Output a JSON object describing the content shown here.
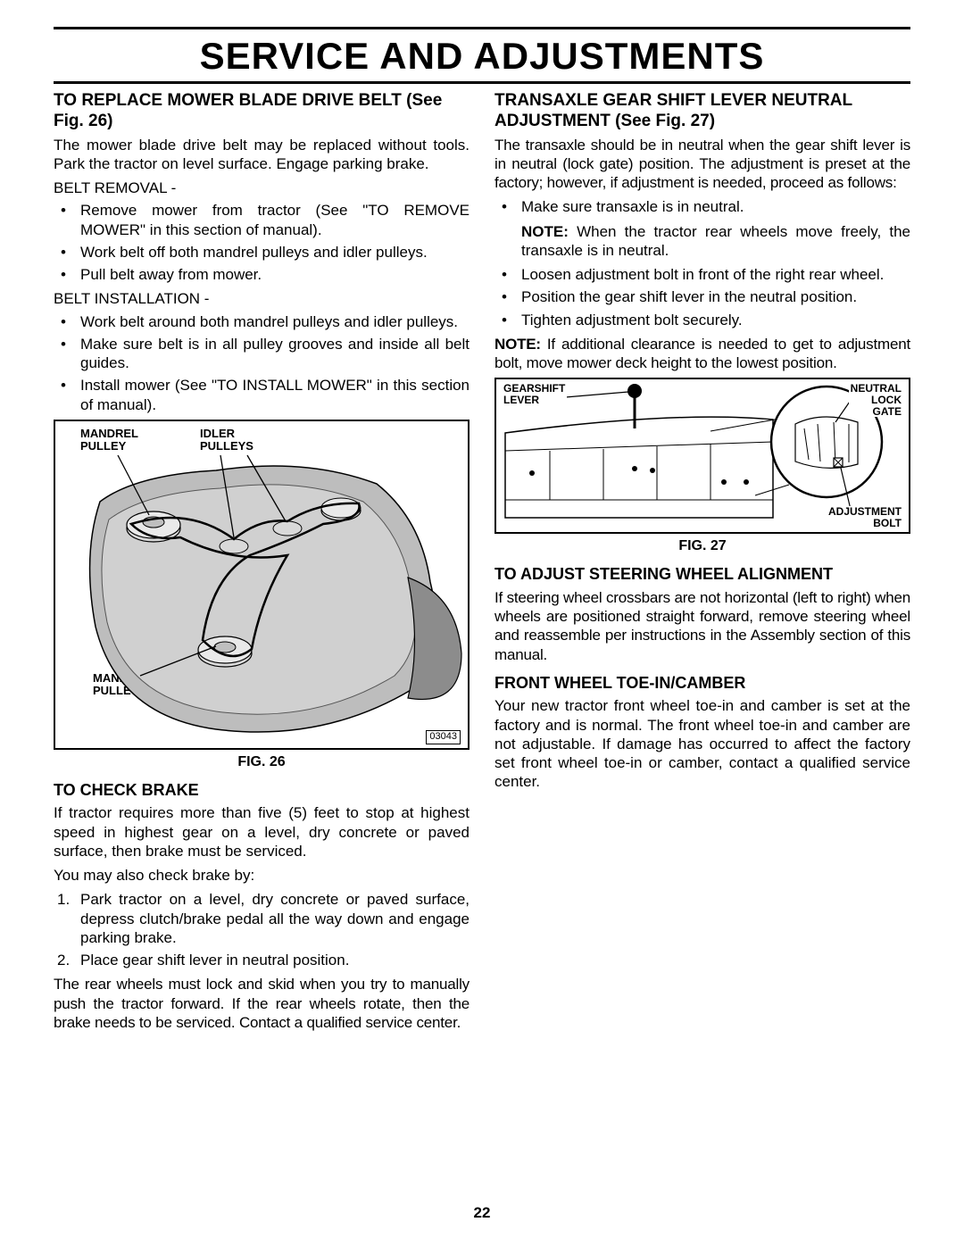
{
  "page_title": "SERVICE AND ADJUSTMENTS",
  "page_number": "22",
  "left": {
    "h1": "TO REPLACE MOWER BLADE DRIVE BELT (See Fig. 26)",
    "p1": "The mower blade drive belt may be replaced without tools. Park the tractor on level surface.  Engage parking brake.",
    "sub1": "BELT REMOVAL -",
    "b1": "Remove mower from tractor (See \"TO REMOVE MOWER\" in this section of manual).",
    "b2": "Work belt off both mandrel pulleys and idler pulleys.",
    "b3": "Pull belt away from mower.",
    "sub2": "BELT INSTALLATION -",
    "b4": "Work belt around both mandrel pulleys and idler pulleys.",
    "b5": "Make sure belt is in all pulley grooves and inside all belt guides.",
    "b6": "Install mower (See \"TO INSTALL MOWER\" in this section of manual).",
    "fig26": {
      "label_mandrel1": "MANDREL\nPULLEY",
      "label_idler": "IDLER\nPULLEYS",
      "label_mandrel2": "MANDREL\nPULLEY",
      "caption": "FIG. 26",
      "part_no": "03043"
    },
    "h2": "TO CHECK BRAKE",
    "p2": "If tractor requires more than five (5) feet to stop at highest speed in highest gear on a level, dry concrete or paved surface, then brake must be serviced.",
    "p3": "You may also check brake by:",
    "n1": "Park tractor on a level, dry concrete or paved surface, depress clutch/brake pedal all the way down and engage parking brake.",
    "n2": "Place gear shift lever in neutral position.",
    "p4": "The rear wheels must lock and skid when you try to manually push the tractor forward. If the rear wheels rotate, then the brake needs to be serviced. Contact a qualified service center."
  },
  "right": {
    "h1": "TRANSAXLE GEAR SHIFT LEVER NEUTRAL ADJUSTMENT (See Fig. 27)",
    "p1": "The transaxle should be in neutral when the gear shift lever is in neutral (lock gate) position. The adjustment is preset at the factory; however, if adjustment is needed, proceed as follows:",
    "b1": "Make sure transaxle is in neutral.",
    "note1_label": "NOTE:",
    "note1": " When the tractor rear wheels move freely, the transaxle is in neutral.",
    "b2": "Loosen adjustment bolt in front of the right rear wheel.",
    "b3": "Position the gear shift lever in the neutral position.",
    "b4": "Tighten adjustment bolt securely.",
    "note2_label": "NOTE:",
    "note2": " If additional clearance is needed to get to adjustment bolt, move mower deck height to the lowest position.",
    "fig27": {
      "label_gearshift": "GEARSHIFT\nLEVER",
      "label_neutral": "NEUTRAL\nLOCK\nGATE",
      "label_adjust": "ADJUSTMENT\nBOLT",
      "caption": "FIG. 27"
    },
    "h2": "TO ADJUST STEERING WHEEL ALIGNMENT",
    "p2": "If steering wheel crossbars are not horizontal (left to right) when wheels are positioned straight forward, remove steering wheel and reassemble per instructions in the Assembly section of this manual.",
    "h3": "FRONT WHEEL TOE-IN/CAMBER",
    "p3": "Your new tractor front wheel toe-in and camber is set at the factory and is normal. The front wheel toe-in and camber are not adjustable.  If damage has occurred to affect the factory set front wheel toe-in or camber, contact a qualified service center."
  }
}
